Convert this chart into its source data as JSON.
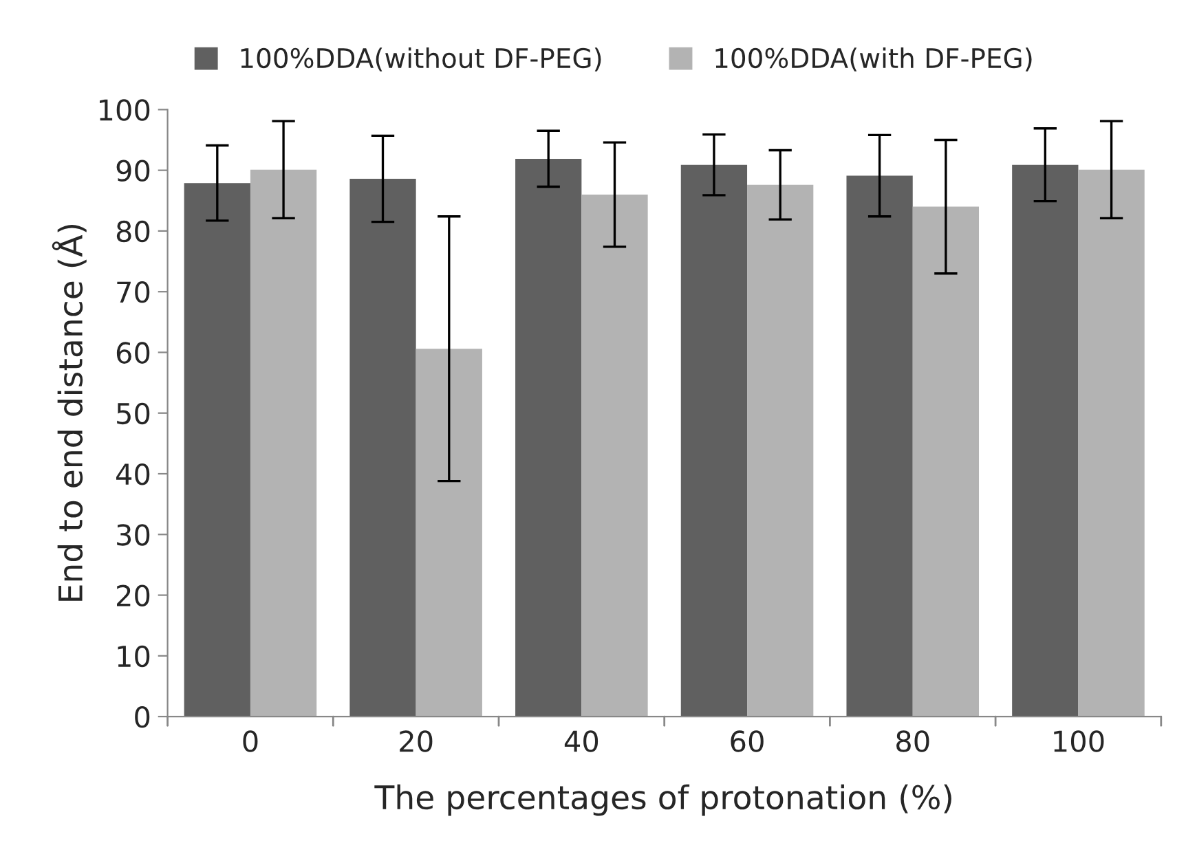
{
  "chart_data": {
    "type": "bar",
    "xlabel": "The percentages of protonation (%)",
    "ylabel": "End to end distance (Å)",
    "categories": [
      "0",
      "20",
      "40",
      "60",
      "80",
      "100"
    ],
    "series": [
      {
        "name": "100%DDA(without DF-PEG)",
        "color": "#606060",
        "values": [
          87.9,
          88.6,
          91.9,
          90.9,
          89.1,
          90.9
        ],
        "errors": [
          6.2,
          7.1,
          4.6,
          5,
          6.7,
          6
        ]
      },
      {
        "name": "100%DDA(with DF-PEG)",
        "color": "#b3b3b3",
        "values": [
          90.1,
          60.6,
          86,
          87.6,
          84,
          90.1
        ],
        "errors": [
          8,
          21.8,
          8.6,
          5.7,
          11,
          8
        ]
      }
    ],
    "ylim": [
      0,
      100
    ],
    "yticks": [
      0,
      10,
      20,
      30,
      40,
      50,
      60,
      70,
      80,
      90,
      100
    ],
    "grid": false,
    "legend": "top"
  }
}
